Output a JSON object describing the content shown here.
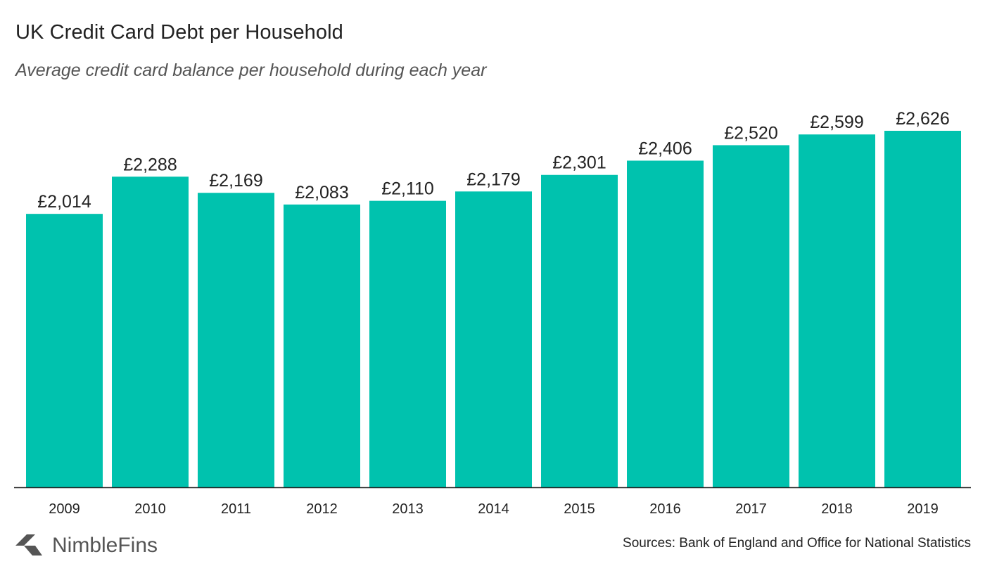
{
  "title": "UK Credit Card Debt per Household",
  "subtitle": "Average credit card balance per household during each year",
  "brand": {
    "name": "NimbleFins",
    "logo_color": "#555555"
  },
  "source": "Sources: Bank of England and Office for National Statistics",
  "colors": {
    "bar": "#00c2ae",
    "axis": "#222222",
    "label": "#222222"
  },
  "chart_data": {
    "type": "bar",
    "categories": [
      "2009",
      "2010",
      "2011",
      "2012",
      "2013",
      "2014",
      "2015",
      "2016",
      "2017",
      "2018",
      "2019"
    ],
    "values": [
      2014,
      2288,
      2169,
      2083,
      2110,
      2179,
      2301,
      2406,
      2520,
      2599,
      2626
    ],
    "data_labels": [
      "£2,014",
      "£2,288",
      "£2,169",
      "£2,083",
      "£2,110",
      "£2,179",
      "£2,301",
      "£2,406",
      "£2,520",
      "£2,599",
      "£2,626"
    ],
    "title": "UK Credit Card Debt per Household",
    "subtitle": "Average credit card balance per household during each year",
    "ylim": [
      0,
      2626
    ],
    "grid": false,
    "legend": "none"
  }
}
